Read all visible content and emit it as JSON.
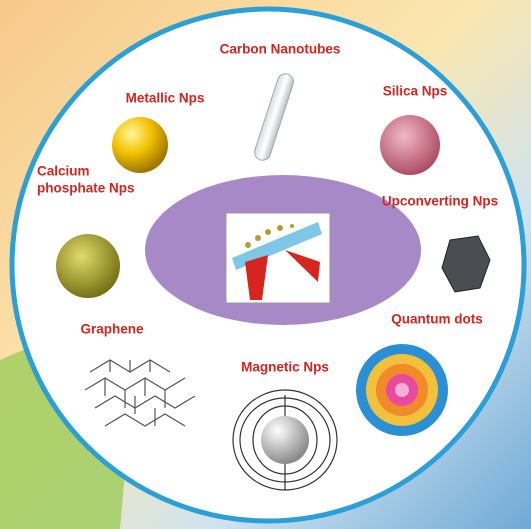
{
  "nodes": [
    {
      "lines": [
        "Carbon Nanotubes"
      ]
    },
    {
      "lines": [
        "Metallic Nps"
      ]
    },
    {
      "lines": [
        "Silica Nps"
      ]
    },
    {
      "lines": [
        "Calcium",
        "phosphate Nps"
      ]
    },
    {
      "lines": [
        "Upconverting Nps"
      ]
    },
    {
      "lines": [
        "Quantum dots"
      ]
    },
    {
      "lines": [
        "Graphene"
      ]
    },
    {
      "lines": [
        "Magnetic Nps"
      ]
    }
  ]
}
